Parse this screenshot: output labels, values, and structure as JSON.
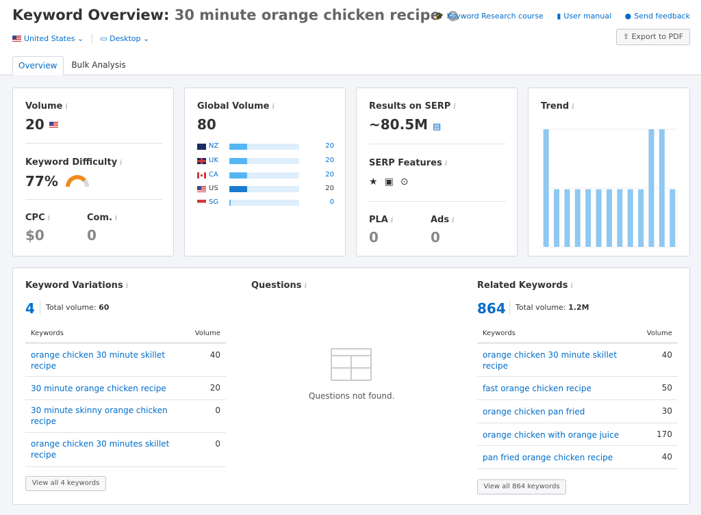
{
  "header": {
    "title_prefix": "Keyword Overview:",
    "keyword": "30 minute orange chicken recipe",
    "links": [
      {
        "icon": "graduation-cap-icon",
        "label": "Keyword Research course"
      },
      {
        "icon": "book-icon",
        "label": "User manual"
      },
      {
        "icon": "speech-bubble-icon",
        "label": "Send feedback"
      }
    ],
    "country": "United States",
    "device": "Desktop",
    "export_label": "Export to PDF"
  },
  "tabs": [
    "Overview",
    "Bulk Analysis"
  ],
  "volume": {
    "label": "Volume",
    "value": "20"
  },
  "keyword_difficulty": {
    "label": "Keyword Difficulty",
    "value": "77%",
    "level": 0.77,
    "color": "#f08c1c"
  },
  "cpc": {
    "label": "CPC",
    "value": "$0"
  },
  "competition": {
    "label": "Com.",
    "value": "0"
  },
  "global_volume": {
    "label": "Global Volume",
    "value": "80",
    "countries": [
      {
        "code": "NZ",
        "value": "20",
        "share": 0.25
      },
      {
        "code": "UK",
        "value": "20",
        "share": 0.25
      },
      {
        "code": "CA",
        "value": "20",
        "share": 0.25
      },
      {
        "code": "US",
        "value": "20",
        "share": 0.25
      },
      {
        "code": "SG",
        "value": "0",
        "share": 0.02
      }
    ]
  },
  "serp": {
    "results_label": "Results on SERP",
    "results_value": "~80.5M",
    "features_label": "SERP Features",
    "features": [
      "star-icon",
      "image-icon",
      "video-icon"
    ],
    "pla_label": "PLA",
    "pla_value": "0",
    "ads_label": "Ads",
    "ads_value": "0"
  },
  "trend": {
    "label": "Trend",
    "bar_color": "#8fc8f1",
    "values": [
      1.0,
      0.49,
      0.49,
      0.49,
      0.49,
      0.49,
      0.49,
      0.49,
      0.49,
      0.49,
      1.0,
      1.0,
      0.49
    ]
  },
  "keyword_variations": {
    "title": "Keyword Variations",
    "count": "4",
    "total_label": "Total volume:",
    "total_value": "60",
    "col_keywords": "Keywords",
    "col_volume": "Volume",
    "rows": [
      {
        "keyword": "orange chicken 30 minute skillet recipe",
        "volume": "40"
      },
      {
        "keyword": "30 minute orange chicken recipe",
        "volume": "20"
      },
      {
        "keyword": "30 minute skinny orange chicken recipe",
        "volume": "0"
      },
      {
        "keyword": "orange chicken 30 minutes skillet recipe",
        "volume": "0"
      }
    ],
    "view_all": "View all 4 keywords"
  },
  "questions": {
    "title": "Questions",
    "empty_text": "Questions not found."
  },
  "related_keywords": {
    "title": "Related Keywords",
    "count": "864",
    "total_label": "Total volume:",
    "total_value": "1.2M",
    "col_keywords": "Keywords",
    "col_volume": "Volume",
    "rows": [
      {
        "keyword": "orange chicken 30 minute skillet recipe",
        "volume": "40"
      },
      {
        "keyword": "fast orange chicken recipe",
        "volume": "50"
      },
      {
        "keyword": "orange chicken pan fried",
        "volume": "30"
      },
      {
        "keyword": "orange chicken with orange juice",
        "volume": "170"
      },
      {
        "keyword": "pan fried orange chicken recipe",
        "volume": "40"
      }
    ],
    "view_all": "View all 864 keywords"
  }
}
